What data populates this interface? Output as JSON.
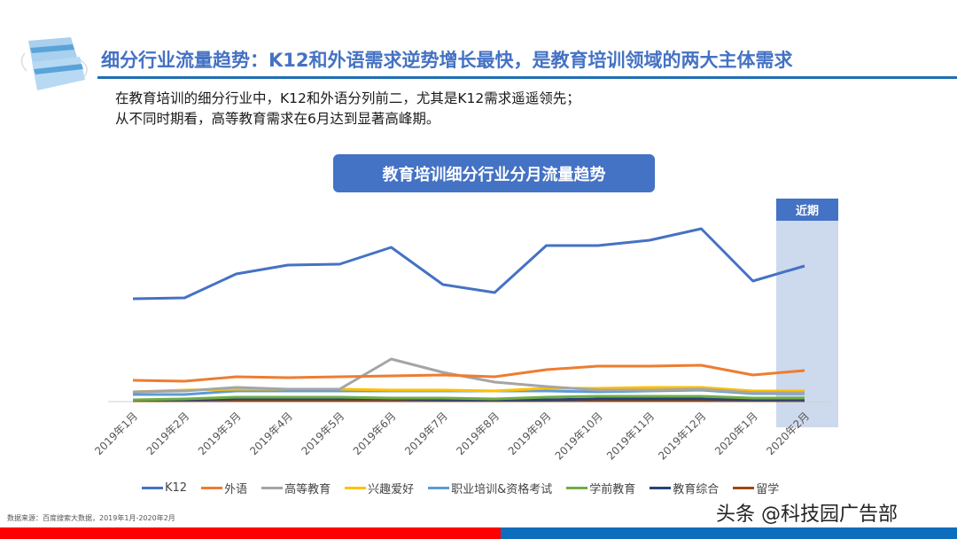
{
  "header": {
    "title": "细分行业流量趋势：K12和外语需求逆势增长最快，是教育培训领域的两大主体需求",
    "subtitle_lines": [
      "在教育培训的细分行业中，K12和外语分列前二，尤其是K12需求遥遥领先；",
      "从不同时期看，高等教育需求在6月达到显著高峰期。"
    ]
  },
  "logo": {
    "icon": "face-mask-icon"
  },
  "chart_title": "教育培训细分行业分月流量趋势",
  "highlight": {
    "label": "近期",
    "color": "#cdd9ec",
    "label_bg": "#4472c4"
  },
  "chart_data": {
    "type": "line",
    "title": "教育培训细分行业分月流量趋势",
    "xlabel": "",
    "ylabel": "",
    "ylim": [
      0,
      220
    ],
    "grid": false,
    "legend_position": "bottom",
    "annotations": [
      "近期 (highlight on 2020年2月)"
    ],
    "categories": [
      "2019年1月",
      "2019年2月",
      "2019年3月",
      "2019年4月",
      "2019年5月",
      "2019年6月",
      "2019年7月",
      "2019年8月",
      "2019年9月",
      "2019年10月",
      "2019年11月",
      "2019年12月",
      "2020年1月",
      "2020年2月"
    ],
    "series": [
      {
        "name": "K12",
        "color": "#4472c4",
        "values": [
          116,
          117,
          144,
          154,
          155,
          174,
          132,
          123,
          176,
          176,
          182,
          195,
          136,
          153
        ]
      },
      {
        "name": "外语",
        "color": "#ed7d31",
        "values": [
          24,
          23,
          28,
          27,
          28,
          29,
          30,
          28,
          36,
          40,
          40,
          41,
          30,
          35
        ]
      },
      {
        "name": "高等教育",
        "color": "#a5a5a5",
        "values": [
          11,
          12,
          16,
          14,
          14,
          48,
          33,
          22,
          17,
          13,
          13,
          14,
          10,
          10
        ]
      },
      {
        "name": "兴趣爱好",
        "color": "#ffc000",
        "values": [
          11,
          13,
          14,
          14,
          14,
          13,
          13,
          12,
          15,
          15,
          16,
          16,
          12,
          12
        ]
      },
      {
        "name": "职业培训&资格考试",
        "color": "#5b9bd5",
        "values": [
          8,
          8,
          12,
          12,
          12,
          12,
          12,
          12,
          12,
          11,
          12,
          13,
          9,
          9
        ]
      },
      {
        "name": "学前教育",
        "color": "#70ad47",
        "values": [
          2,
          3,
          5,
          5,
          5,
          4,
          4,
          3,
          5,
          6,
          6,
          6,
          4,
          4
        ]
      },
      {
        "name": "教育综合",
        "color": "#264478",
        "values": [
          2,
          2,
          3,
          3,
          3,
          3,
          2,
          2,
          2,
          3,
          3,
          3,
          2,
          2
        ]
      },
      {
        "name": "留学",
        "color": "#9e480e",
        "values": [
          1,
          1,
          1,
          1,
          1,
          1,
          1,
          1,
          1,
          1,
          1,
          1,
          1,
          1
        ]
      }
    ]
  },
  "legend": [
    {
      "label": "K12",
      "color": "#4472c4"
    },
    {
      "label": "外语",
      "color": "#ed7d31"
    },
    {
      "label": "高等教育",
      "color": "#a5a5a5"
    },
    {
      "label": "兴趣爱好",
      "color": "#ffc000"
    },
    {
      "label": "职业培训&资格考试",
      "color": "#5b9bd5"
    },
    {
      "label": "学前教育",
      "color": "#70ad47"
    },
    {
      "label": "教育综合",
      "color": "#264478"
    },
    {
      "label": "留学",
      "color": "#9e480e"
    }
  ],
  "footer": {
    "source": "数据来源：百度搜索大数据，2019年1月-2020年2月",
    "watermark": "头条 @科技园广告部"
  }
}
